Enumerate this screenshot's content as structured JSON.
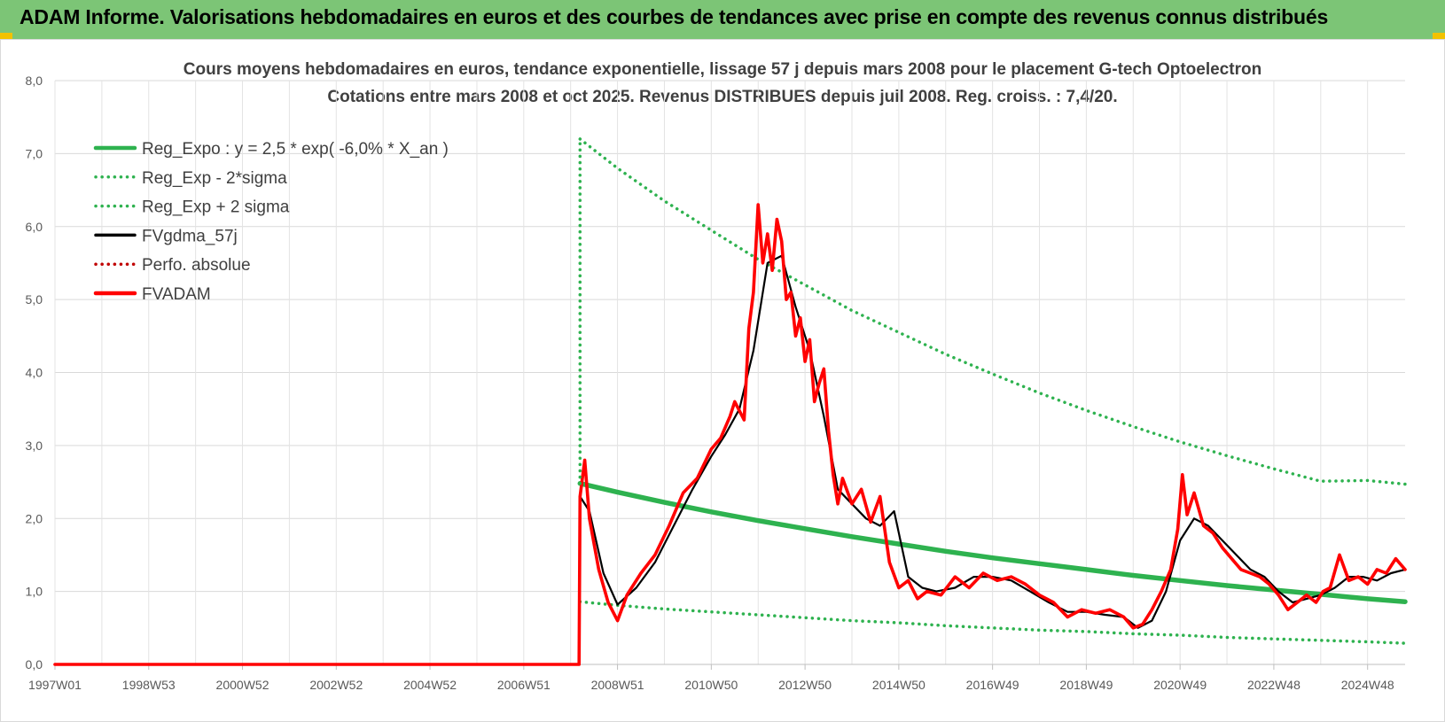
{
  "header": {
    "title": "ADAM Informe. Valorisations hebdomadaires en euros et des courbes de tendances avec prise en compte des revenus connus distribués"
  },
  "colors": {
    "banner": "#7cc576",
    "accent": "#f2c200",
    "reg_green": "#2eb24f",
    "adam_red": "#ff0000",
    "gdma_black": "#000000"
  },
  "chart_data": {
    "type": "line",
    "title": "Cours moyens hebdomadaires en euros, tendance exponentielle, lissage 57 j depuis mars 2008 pour le placement G-tech Optoelectron",
    "subtitle": "Cotations entre mars 2008 et oct 2025. Revenus DISTRIBUES depuis juil 2008. Reg. croiss. : 7,4/20.",
    "xlabel": "",
    "ylabel": "",
    "ylim": [
      0,
      8
    ],
    "y_ticks": [
      "0,0",
      "1,0",
      "2,0",
      "3,0",
      "4,0",
      "5,0",
      "6,0",
      "7,0",
      "8,0"
    ],
    "x_ticks": [
      "1997W01",
      "1998W53",
      "2000W52",
      "2002W52",
      "2004W52",
      "2006W51",
      "2008W51",
      "2010W50",
      "2012W50",
      "2014W50",
      "2016W49",
      "2018W49",
      "2020W49",
      "2022W48",
      "2024W48"
    ],
    "x_range": [
      1997.0,
      2025.8
    ],
    "grid": true,
    "legend_position": "top-left",
    "series": [
      {
        "name": "Reg_Expo : y = 2,5 * exp( -6,0% *  X_an )",
        "style": "solid",
        "color": "#2eb24f",
        "x": [
          2008.2,
          2009,
          2010,
          2011,
          2012,
          2013,
          2014,
          2015,
          2016,
          2017,
          2018,
          2019,
          2020,
          2021,
          2022,
          2023,
          2024,
          2025,
          2025.8
        ],
        "y": [
          2.48,
          2.36,
          2.22,
          2.09,
          1.97,
          1.86,
          1.75,
          1.65,
          1.55,
          1.46,
          1.38,
          1.3,
          1.22,
          1.15,
          1.08,
          1.02,
          0.96,
          0.9,
          0.86
        ]
      },
      {
        "name": "Reg_Exp - 2*sigma",
        "style": "dotted",
        "color": "#2eb24f",
        "x": [
          2008.2,
          2009,
          2010,
          2011,
          2012,
          2013,
          2014,
          2015,
          2016,
          2017,
          2018,
          2019,
          2020,
          2021,
          2022,
          2023,
          2024,
          2025,
          2025.8
        ],
        "y": [
          0.86,
          0.81,
          0.76,
          0.72,
          0.68,
          0.64,
          0.6,
          0.57,
          0.53,
          0.5,
          0.47,
          0.45,
          0.42,
          0.4,
          0.37,
          0.35,
          0.33,
          0.31,
          0.29
        ]
      },
      {
        "name": "Reg_Exp + 2 sigma",
        "style": "dotted",
        "color": "#2eb24f",
        "x": [
          2008.2,
          2009,
          2010,
          2011,
          2012,
          2013,
          2014,
          2015,
          2016,
          2017,
          2018,
          2019,
          2020,
          2021,
          2022,
          2023,
          2024,
          2025,
          2025.8
        ],
        "y": [
          7.2,
          6.8,
          6.35,
          5.95,
          5.55,
          5.2,
          4.85,
          4.55,
          4.25,
          3.98,
          3.72,
          3.48,
          3.26,
          3.05,
          2.86,
          2.68,
          2.51,
          2.52,
          2.47
        ]
      },
      {
        "name": "FVgdma_57j",
        "style": "solid",
        "color": "#000000",
        "x": [
          2008.2,
          2008.4,
          2008.7,
          2009.0,
          2009.4,
          2009.8,
          2010.2,
          2010.6,
          2011.0,
          2011.3,
          2011.6,
          2011.9,
          2012.2,
          2012.5,
          2012.8,
          2013.1,
          2013.4,
          2013.7,
          2014.0,
          2014.3,
          2014.6,
          2014.9,
          2015.2,
          2015.5,
          2015.8,
          2016.2,
          2016.6,
          2017.0,
          2017.4,
          2017.8,
          2018.2,
          2018.6,
          2019.0,
          2019.4,
          2019.8,
          2020.1,
          2020.4,
          2020.7,
          2021.0,
          2021.3,
          2021.6,
          2021.9,
          2022.2,
          2022.5,
          2022.8,
          2023.1,
          2023.4,
          2023.7,
          2024.0,
          2024.3,
          2024.6,
          2024.9,
          2025.2,
          2025.5,
          2025.8
        ],
        "y": [
          2.3,
          2.1,
          1.25,
          0.82,
          1.05,
          1.4,
          1.9,
          2.4,
          2.85,
          3.15,
          3.5,
          4.3,
          5.5,
          5.6,
          4.9,
          4.3,
          3.4,
          2.4,
          2.2,
          2.0,
          1.9,
          2.1,
          1.2,
          1.05,
          1.0,
          1.05,
          1.2,
          1.2,
          1.15,
          1.0,
          0.85,
          0.72,
          0.72,
          0.68,
          0.65,
          0.5,
          0.6,
          1.0,
          1.7,
          2.0,
          1.9,
          1.7,
          1.5,
          1.3,
          1.2,
          1.0,
          0.85,
          0.9,
          0.95,
          1.05,
          1.2,
          1.2,
          1.15,
          1.25,
          1.3
        ]
      },
      {
        "name": "Perfo. absolue",
        "style": "dotted",
        "color": "#c00000",
        "x": [],
        "y": []
      },
      {
        "name": "FVADAM",
        "style": "solid",
        "color": "#ff0000",
        "x": [
          1997.0,
          2008.18,
          2008.2,
          2008.3,
          2008.4,
          2008.6,
          2008.8,
          2009.0,
          2009.2,
          2009.5,
          2009.8,
          2010.1,
          2010.4,
          2010.7,
          2011.0,
          2011.2,
          2011.4,
          2011.5,
          2011.7,
          2011.8,
          2011.9,
          2012.0,
          2012.1,
          2012.2,
          2012.3,
          2012.4,
          2012.5,
          2012.6,
          2012.7,
          2012.8,
          2012.9,
          2013.0,
          2013.1,
          2013.2,
          2013.3,
          2013.4,
          2013.5,
          2013.6,
          2013.7,
          2013.8,
          2014.0,
          2014.2,
          2014.4,
          2014.6,
          2014.8,
          2015.0,
          2015.2,
          2015.4,
          2015.6,
          2015.9,
          2016.2,
          2016.5,
          2016.8,
          2017.1,
          2017.4,
          2017.7,
          2018.0,
          2018.3,
          2018.6,
          2018.9,
          2019.2,
          2019.5,
          2019.8,
          2020.0,
          2020.2,
          2020.4,
          2020.6,
          2020.8,
          2020.95,
          2021.05,
          2021.15,
          2021.3,
          2021.5,
          2021.7,
          2021.9,
          2022.1,
          2022.3,
          2022.5,
          2022.7,
          2022.9,
          2023.1,
          2023.3,
          2023.5,
          2023.7,
          2023.9,
          2024.05,
          2024.2,
          2024.4,
          2024.6,
          2024.8,
          2025.0,
          2025.2,
          2025.4,
          2025.6,
          2025.8
        ],
        "y": [
          0.0,
          0.0,
          2.3,
          2.8,
          2.0,
          1.3,
          0.85,
          0.6,
          0.95,
          1.25,
          1.5,
          1.9,
          2.35,
          2.55,
          2.95,
          3.1,
          3.4,
          3.6,
          3.35,
          4.6,
          5.1,
          6.3,
          5.5,
          5.9,
          5.4,
          6.1,
          5.8,
          5.0,
          5.1,
          4.5,
          4.75,
          4.15,
          4.45,
          3.6,
          3.85,
          4.05,
          3.2,
          2.6,
          2.2,
          2.55,
          2.2,
          2.4,
          1.95,
          2.3,
          1.4,
          1.05,
          1.15,
          0.9,
          1.0,
          0.95,
          1.2,
          1.05,
          1.25,
          1.15,
          1.2,
          1.1,
          0.95,
          0.85,
          0.65,
          0.75,
          0.7,
          0.75,
          0.65,
          0.5,
          0.55,
          0.75,
          1.0,
          1.3,
          1.85,
          2.6,
          2.05,
          2.35,
          1.9,
          1.8,
          1.6,
          1.45,
          1.3,
          1.25,
          1.2,
          1.1,
          0.95,
          0.75,
          0.85,
          0.95,
          0.85,
          1.0,
          1.05,
          1.5,
          1.15,
          1.2,
          1.1,
          1.3,
          1.25,
          1.45,
          1.3
        ]
      }
    ]
  }
}
